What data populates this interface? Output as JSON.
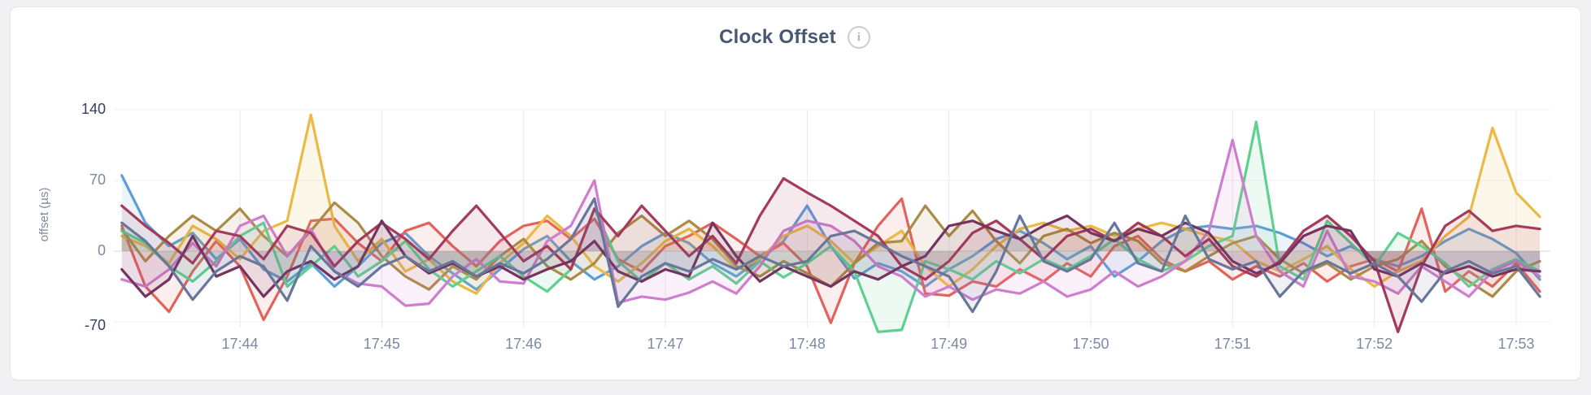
{
  "page": {
    "background_color": "#f1f1f4"
  },
  "panel": {
    "background_color": "#ffffff",
    "border_color": "#e6e6e9"
  },
  "header": {
    "title": "Clock Offset",
    "info_icon_glyph": "i"
  },
  "chart_data": {
    "type": "line",
    "title": "Clock Offset",
    "ylabel": "offset (µs)",
    "xlabel": "",
    "y_ticks": [
      140,
      70,
      0,
      -70
    ],
    "ylim": [
      -90,
      150
    ],
    "x_tick_labels": [
      "17:44",
      "17:45",
      "17:46",
      "17:47",
      "17:48",
      "17:49",
      "17:50",
      "17:51",
      "17:52",
      "17:53"
    ],
    "x_start_time": "17:43:10",
    "x_step_seconds": 10,
    "grid": true,
    "legend_position": "none",
    "area_fill": true,
    "fill_opacity": 0.11,
    "series": [
      {
        "name": "series-1",
        "color": "#5c9fd6",
        "values": [
          75,
          28,
          5,
          18,
          -8,
          12,
          -18,
          -30,
          -12,
          -35,
          -15,
          8,
          18,
          -5,
          -22,
          -38,
          -18,
          2,
          15,
          -10,
          -28,
          -15,
          5,
          18,
          8,
          -12,
          -25,
          -8,
          10,
          45,
          5,
          -27,
          -12,
          -20,
          -35,
          -18,
          -5,
          12,
          20,
          8,
          -8,
          5,
          -25,
          -10,
          10,
          22,
          25,
          22,
          25,
          18,
          8,
          -5,
          5,
          -8,
          -15,
          -5,
          10,
          22,
          12,
          -2,
          -28
        ]
      },
      {
        "name": "series-2",
        "color": "#e2635c",
        "values": [
          25,
          -35,
          -60,
          -20,
          10,
          -15,
          -68,
          -25,
          30,
          32,
          8,
          -10,
          20,
          28,
          5,
          -15,
          10,
          25,
          30,
          12,
          32,
          -8,
          -20,
          5,
          15,
          28,
          12,
          -5,
          8,
          -15,
          -71,
          -12,
          25,
          52,
          -42,
          -44,
          -30,
          -35,
          -18,
          -30,
          -12,
          -25,
          5,
          15,
          -8,
          -20,
          -10,
          -28,
          -15,
          -25,
          -12,
          -30,
          -15,
          -8,
          -20,
          42,
          -40,
          -20,
          -35,
          -12,
          -40
        ]
      },
      {
        "name": "series-3",
        "color": "#ecb944",
        "values": [
          15,
          5,
          -12,
          25,
          12,
          -8,
          20,
          30,
          135,
          25,
          -10,
          12,
          -20,
          -8,
          -30,
          -42,
          -12,
          8,
          35,
          15,
          -15,
          -30,
          -12,
          10,
          22,
          5,
          -18,
          -8,
          15,
          25,
          10,
          -12,
          5,
          20,
          -15,
          -35,
          -18,
          5,
          22,
          28,
          20,
          25,
          15,
          22,
          28,
          22,
          15,
          10,
          -10,
          -20,
          -8,
          5,
          -18,
          -35,
          -20,
          -10,
          15,
          34,
          122,
          58,
          34
        ]
      },
      {
        "name": "series-4",
        "color": "#ab8b45",
        "values": [
          22,
          -10,
          15,
          35,
          20,
          42,
          15,
          -5,
          20,
          48,
          28,
          -5,
          -25,
          -38,
          -15,
          -28,
          -5,
          12,
          -15,
          -28,
          -12,
          18,
          35,
          15,
          30,
          12,
          -15,
          -25,
          -10,
          -22,
          -35,
          -12,
          8,
          10,
          45,
          15,
          40,
          10,
          -12,
          15,
          22,
          8,
          18,
          10,
          -12,
          -20,
          -5,
          8,
          15,
          -8,
          -22,
          -12,
          -28,
          -15,
          -8,
          10,
          -15,
          -30,
          -45,
          -20,
          -10
        ]
      },
      {
        "name": "series-5",
        "color": "#5fd08f",
        "values": [
          20,
          8,
          -15,
          -30,
          -10,
          15,
          28,
          -35,
          -15,
          5,
          -25,
          -10,
          10,
          -18,
          -35,
          -20,
          -5,
          -25,
          -40,
          -18,
          42,
          -10,
          -30,
          -12,
          -28,
          -15,
          -32,
          -10,
          -26,
          -12,
          5,
          -20,
          -80,
          -78,
          -10,
          -18,
          -28,
          -10,
          -22,
          -8,
          -18,
          -5,
          12,
          -8,
          -20,
          -10,
          5,
          15,
          128,
          -15,
          -28,
          30,
          8,
          -15,
          18,
          5,
          -12,
          -35,
          -18,
          -8,
          -20
        ]
      },
      {
        "name": "series-6",
        "color": "#cd7ecd",
        "values": [
          -28,
          -35,
          -18,
          8,
          -15,
          25,
          35,
          -5,
          22,
          -20,
          -32,
          -35,
          -54,
          -52,
          -25,
          -8,
          -30,
          -32,
          10,
          25,
          70,
          -51,
          -45,
          -48,
          -41,
          -30,
          -42,
          -15,
          20,
          30,
          25,
          10,
          -15,
          -25,
          -45,
          -35,
          -48,
          -38,
          -42,
          -30,
          -45,
          -38,
          -20,
          -35,
          -25,
          -10,
          20,
          110,
          15,
          -20,
          -35,
          20,
          -25,
          -30,
          -42,
          -15,
          -30,
          -45,
          -20,
          -10,
          -25
        ]
      },
      {
        "name": "series-7",
        "color": "#a43a5c",
        "values": [
          45,
          25,
          8,
          -12,
          20,
          15,
          -8,
          25,
          18,
          -15,
          10,
          28,
          12,
          -8,
          20,
          45,
          18,
          -10,
          5,
          -18,
          42,
          15,
          45,
          20,
          -5,
          15,
          -12,
          35,
          72,
          58,
          45,
          30,
          15,
          -15,
          -28,
          -10,
          18,
          30,
          12,
          -8,
          15,
          22,
          10,
          28,
          15,
          -5,
          12,
          -15,
          -25,
          -10,
          20,
          35,
          15,
          -10,
          -80,
          -15,
          25,
          40,
          20,
          25,
          22
        ]
      },
      {
        "name": "series-8",
        "color": "#75335f",
        "values": [
          -18,
          -45,
          -28,
          15,
          -25,
          -15,
          -45,
          -20,
          -10,
          -28,
          -15,
          30,
          -5,
          -22,
          -12,
          -25,
          -15,
          -28,
          -18,
          -10,
          10,
          -20,
          -30,
          -18,
          -25,
          28,
          -5,
          -30,
          -15,
          -25,
          -35,
          -20,
          -28,
          -15,
          -5,
          25,
          30,
          20,
          12,
          25,
          35,
          18,
          10,
          22,
          15,
          28,
          18,
          -10,
          -22,
          -12,
          15,
          25,
          20,
          -18,
          -25,
          -12,
          -22,
          -15,
          -25,
          -18,
          -20
        ]
      },
      {
        "name": "series-9",
        "color": "#66779a",
        "values": [
          28,
          10,
          -15,
          -48,
          -20,
          -5,
          -15,
          -49,
          5,
          -20,
          -35,
          -15,
          -5,
          -20,
          -10,
          -25,
          -12,
          -22,
          -8,
          12,
          52,
          -55,
          -25,
          -12,
          -20,
          -8,
          -18,
          -5,
          -15,
          -10,
          15,
          20,
          8,
          -5,
          -15,
          -25,
          -60,
          -20,
          35,
          -10,
          -20,
          -8,
          28,
          -12,
          -20,
          35,
          -8,
          -18,
          -10,
          -45,
          -20,
          -10,
          -22,
          -12,
          -25,
          -50,
          -20,
          -10,
          -22,
          -15,
          -45
        ]
      }
    ]
  }
}
